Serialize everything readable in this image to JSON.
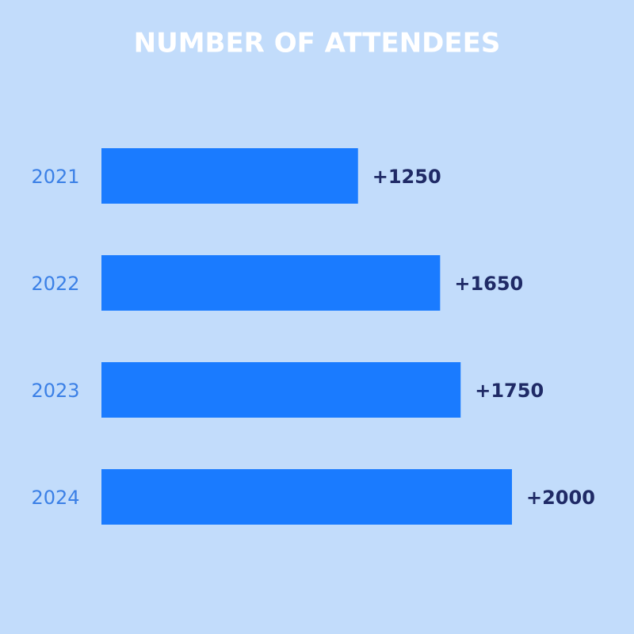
{
  "chart_data": {
    "type": "bar",
    "orientation": "horizontal",
    "title": "NUMBER OF ATTENDEES",
    "categories": [
      "2021",
      "2022",
      "2023",
      "2024"
    ],
    "values": [
      1250,
      1650,
      1750,
      2000
    ],
    "value_labels": [
      "+1250",
      "+1650",
      "+1750",
      "+2000"
    ],
    "color": "#1a7bff"
  }
}
